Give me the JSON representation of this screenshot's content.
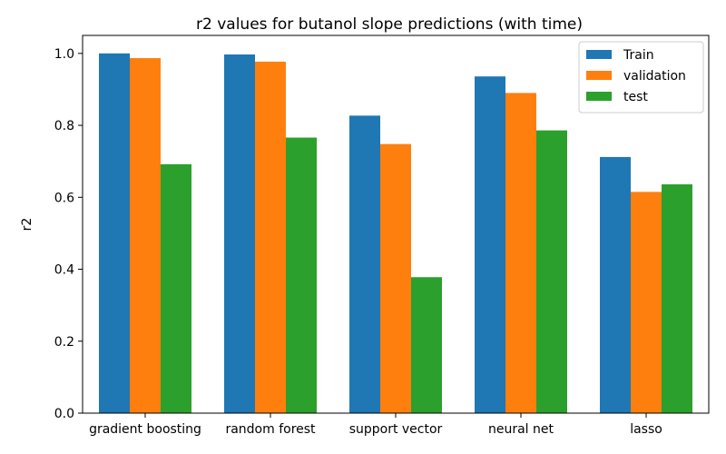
{
  "chart_data": {
    "type": "bar",
    "title": "r2 values for butanol slope predictions (with time)",
    "xlabel": "",
    "ylabel": "r2",
    "ylim": [
      0,
      1.05
    ],
    "yticks": [
      0.0,
      0.2,
      0.4,
      0.6,
      0.8,
      1.0
    ],
    "ytick_labels": [
      "0.0",
      "0.2",
      "0.4",
      "0.6",
      "0.8",
      "1.0"
    ],
    "categories": [
      "gradient boosting",
      "random forest",
      "support vector",
      "neural net",
      "lasso"
    ],
    "series": [
      {
        "name": "Train",
        "color": "#1f77b4",
        "values": [
          1.0,
          0.997,
          0.827,
          0.936,
          0.712
        ]
      },
      {
        "name": "validation",
        "color": "#ff7f0e",
        "values": [
          0.987,
          0.977,
          0.748,
          0.89,
          0.615
        ]
      },
      {
        "name": "test",
        "color": "#2ca02c",
        "values": [
          0.692,
          0.766,
          0.378,
          0.786,
          0.636
        ]
      }
    ],
    "grid": false,
    "legend_position": "top-right"
  }
}
